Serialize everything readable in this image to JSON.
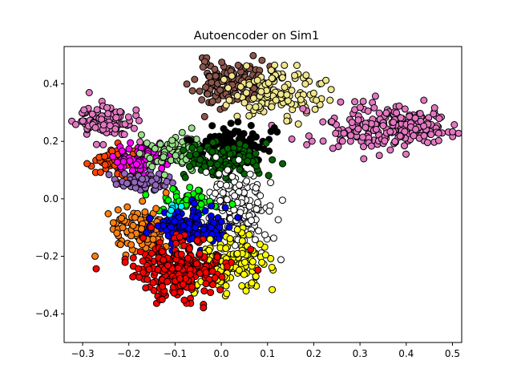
{
  "chart_data": {
    "type": "scatter",
    "title": "Autoencoder on Sim1",
    "xlabel": "",
    "ylabel": "",
    "xlim": [
      -0.34,
      0.52
    ],
    "ylim": [
      -0.5,
      0.53
    ],
    "xticks": [
      -0.3,
      -0.2,
      -0.1,
      0.0,
      0.1,
      0.2,
      0.3,
      0.4,
      0.5
    ],
    "xtick_labels": [
      "−0.3",
      "−0.2",
      "−0.1",
      "0.0",
      "0.1",
      "0.2",
      "0.3",
      "0.4",
      "0.5"
    ],
    "yticks": [
      -0.4,
      -0.2,
      0.0,
      0.2,
      0.4
    ],
    "ytick_labels": [
      "−0.4",
      "−0.2",
      "0.0",
      "0.2",
      "0.4"
    ],
    "grid": false,
    "legend": "none",
    "marker_edge_color": "#000000",
    "series": [
      {
        "color": "#8c564b",
        "center": [
          0.02,
          0.4
        ],
        "spread": [
          0.04,
          0.04
        ],
        "count": 130,
        "seed": 11
      },
      {
        "color": "#f0e68c",
        "center": [
          0.12,
          0.37
        ],
        "spread": [
          0.05,
          0.04
        ],
        "count": 130,
        "seed": 12
      },
      {
        "color": "#e377c2",
        "center": [
          0.35,
          0.25
        ],
        "spread": [
          0.09,
          0.04
        ],
        "count": 240,
        "seed": 13
      },
      {
        "color": "#e377c2",
        "center": [
          -0.25,
          0.27
        ],
        "spread": [
          0.03,
          0.03
        ],
        "count": 110,
        "seed": 14
      },
      {
        "color": "#ff4500",
        "center": [
          -0.23,
          0.13
        ],
        "spread": [
          0.03,
          0.03
        ],
        "count": 60,
        "seed": 15
      },
      {
        "color": "#ff00ff",
        "center": [
          -0.17,
          0.14
        ],
        "spread": [
          0.03,
          0.03
        ],
        "count": 80,
        "seed": 16
      },
      {
        "color": "#9467bd",
        "center": [
          -0.17,
          0.06
        ],
        "spread": [
          0.03,
          0.02
        ],
        "count": 60,
        "seed": 17
      },
      {
        "color": "#98df8a",
        "center": [
          -0.08,
          0.16
        ],
        "spread": [
          0.04,
          0.03
        ],
        "count": 110,
        "seed": 18
      },
      {
        "color": "#000000",
        "center": [
          0.02,
          0.19
        ],
        "spread": [
          0.04,
          0.03
        ],
        "count": 100,
        "seed": 19
      },
      {
        "color": "#006400",
        "center": [
          0.01,
          0.13
        ],
        "spread": [
          0.04,
          0.03
        ],
        "count": 140,
        "seed": 20
      },
      {
        "color": "#ffffff",
        "center": [
          0.03,
          -0.04
        ],
        "spread": [
          0.04,
          0.07
        ],
        "count": 200,
        "seed": 21
      },
      {
        "color": "#00ff00",
        "center": [
          -0.07,
          0.0
        ],
        "spread": [
          0.03,
          0.02
        ],
        "count": 40,
        "seed": 22
      },
      {
        "color": "#ff7f0e",
        "center": [
          -0.17,
          -0.11
        ],
        "spread": [
          0.04,
          0.04
        ],
        "count": 120,
        "seed": 23
      },
      {
        "color": "#0000ff",
        "center": [
          -0.08,
          -0.1
        ],
        "spread": [
          0.04,
          0.03
        ],
        "count": 140,
        "seed": 24
      },
      {
        "color": "#ffff00",
        "center": [
          0.02,
          -0.23
        ],
        "spread": [
          0.04,
          0.05
        ],
        "count": 140,
        "seed": 25
      },
      {
        "color": "#ff0000",
        "center": [
          -0.09,
          -0.25
        ],
        "spread": [
          0.05,
          0.05
        ],
        "count": 260,
        "seed": 26
      },
      {
        "color": "#00ffff",
        "center": [
          -0.1,
          -0.04
        ],
        "spread": [
          0.01,
          0.01
        ],
        "count": 6,
        "seed": 27
      }
    ]
  }
}
